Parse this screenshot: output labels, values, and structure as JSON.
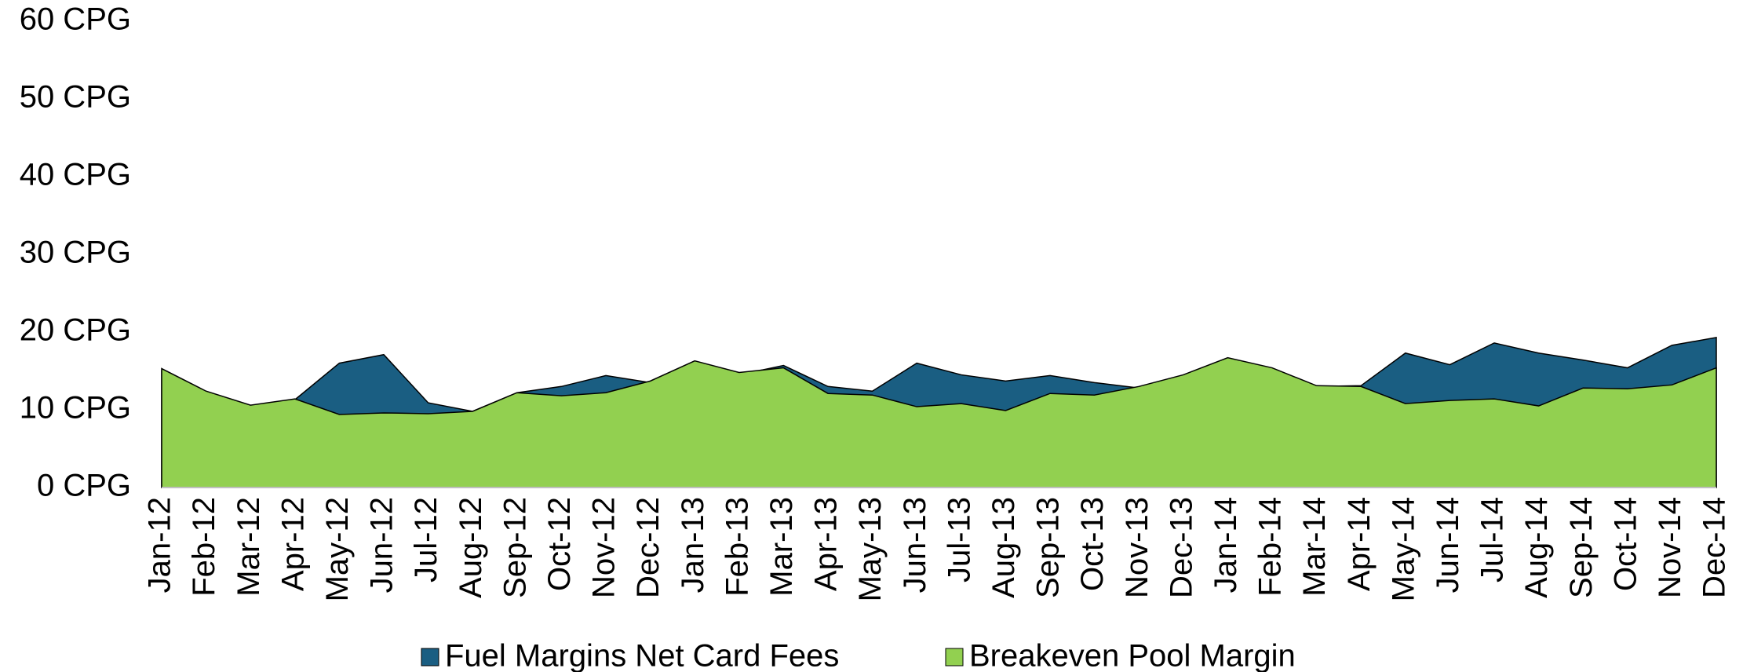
{
  "chart_data": {
    "type": "area",
    "categories": [
      "Jan-12",
      "Feb-12",
      "Mar-12",
      "Apr-12",
      "May-12",
      "Jun-12",
      "Jul-12",
      "Aug-12",
      "Sep-12",
      "Oct-12",
      "Nov-12",
      "Dec-12",
      "Jan-13",
      "Feb-13",
      "Mar-13",
      "Apr-13",
      "May-13",
      "Jun-13",
      "Jul-13",
      "Aug-13",
      "Sep-13",
      "Oct-13",
      "Nov-13",
      "Dec-13",
      "Jan-14",
      "Feb-14",
      "Mar-14",
      "Apr-14",
      "May-14",
      "Jun-14",
      "Jul-14",
      "Aug-14",
      "Sep-14",
      "Oct-14",
      "Nov-14",
      "Dec-14"
    ],
    "series": [
      {
        "name": "Fuel Margins Net Card Fees",
        "color": "#1a5e82",
        "values": [
          15.0,
          12.2,
          10.5,
          11.3,
          16.0,
          17.1,
          10.9,
          9.8,
          12.2,
          13.0,
          14.4,
          13.5,
          16.0,
          14.5,
          15.7,
          13.0,
          12.4,
          16.0,
          14.5,
          13.7,
          14.4,
          13.5,
          12.8,
          14.3,
          16.5,
          15.2,
          13.0,
          13.1,
          17.3,
          15.8,
          18.6,
          17.3,
          16.4,
          15.4,
          18.3,
          19.3
        ]
      },
      {
        "name": "Breakeven Pool Margin",
        "color": "#92d050",
        "values": [
          15.3,
          12.4,
          10.6,
          11.4,
          9.4,
          9.6,
          9.5,
          9.8,
          12.2,
          11.8,
          12.2,
          13.7,
          16.3,
          14.8,
          15.4,
          12.1,
          11.9,
          10.4,
          10.8,
          9.9,
          12.1,
          11.9,
          13.0,
          14.5,
          16.7,
          15.4,
          13.1,
          13.0,
          10.8,
          11.2,
          11.4,
          10.5,
          12.8,
          12.7,
          13.2,
          15.4
        ]
      }
    ],
    "ylim": [
      0,
      60
    ],
    "yticks": [
      {
        "value": 0,
        "label": "0 CPG"
      },
      {
        "value": 10,
        "label": "10 CPG"
      },
      {
        "value": 20,
        "label": "20 CPG"
      },
      {
        "value": 30,
        "label": "30 CPG"
      },
      {
        "value": 40,
        "label": "40 CPG"
      },
      {
        "value": 50,
        "label": "50 CPG"
      },
      {
        "value": 60,
        "label": "60 CPG"
      }
    ],
    "grid": false,
    "legend": "bottom"
  }
}
